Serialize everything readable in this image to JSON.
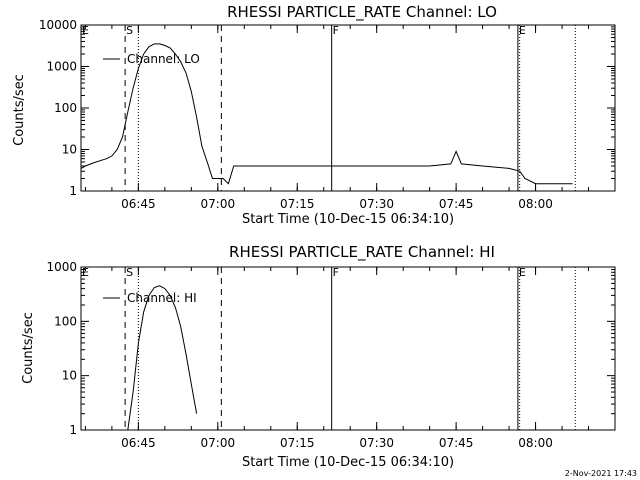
{
  "chart_data": [
    {
      "type": "line",
      "title": "RHESSI PARTICLE_RATE Channel: LO",
      "xlabel": "Start Time (10-Dec-15 06:34:10)",
      "ylabel": "Counts/sec",
      "yscale": "log",
      "ylim": [
        1,
        10000
      ],
      "xlim": [
        "06:34:10",
        "08:15:00"
      ],
      "x_ticks": [
        "06:45",
        "07:00",
        "07:15",
        "07:30",
        "07:45",
        "08:00"
      ],
      "y_ticks": [
        "1",
        "10",
        "100",
        "1000",
        "10000"
      ],
      "legend": {
        "placement": "top-left",
        "entries": [
          "Channel: LO"
        ]
      },
      "markers": [
        {
          "label": "E",
          "time": "06:34:10",
          "style": "solid"
        },
        {
          "label": "S",
          "time": "06:42:30",
          "style": "dashed"
        },
        {
          "label": "",
          "time": "06:45:00",
          "style": "dotted"
        },
        {
          "label": "",
          "time": "07:00:40",
          "style": "dashed"
        },
        {
          "label": "F",
          "time": "07:21:30",
          "style": "solid"
        },
        {
          "label": "E",
          "time": "07:56:40",
          "style": "solid"
        },
        {
          "label": "",
          "time": "07:57:00",
          "style": "dotted"
        },
        {
          "label": "",
          "time": "08:07:30",
          "style": "dotted"
        }
      ],
      "series": [
        {
          "name": "Channel: LO",
          "x": [
            "06:34:10",
            "06:35:00",
            "06:36:00",
            "06:37:00",
            "06:38:00",
            "06:39:00",
            "06:40:00",
            "06:41:00",
            "06:42:00",
            "06:43:00",
            "06:44:00",
            "06:45:00",
            "06:46:00",
            "06:47:00",
            "06:48:00",
            "06:49:00",
            "06:50:00",
            "06:51:00",
            "06:52:00",
            "06:53:00",
            "06:54:00",
            "06:55:00",
            "06:56:00",
            "06:57:00",
            "06:58:00",
            "06:59:00",
            "07:00:00",
            "07:01:00",
            "07:02:00",
            "07:03:00",
            "07:05:00",
            "07:10:00",
            "07:15:00",
            "07:20:00",
            "07:25:00",
            "07:30:00",
            "07:35:00",
            "07:40:00",
            "07:44:00",
            "07:45:00",
            "07:46:00",
            "07:50:00",
            "07:55:00",
            "07:57:00",
            "07:58:00",
            "08:00:00",
            "08:02:00",
            "08:04:00",
            "08:06:00",
            "08:07:00"
          ],
          "y": [
            3.5,
            4,
            4.5,
            5,
            5.5,
            6,
            7,
            10,
            20,
            80,
            300,
            900,
            2000,
            3000,
            3500,
            3500,
            3200,
            2800,
            2000,
            1300,
            700,
            250,
            60,
            12,
            5,
            2,
            2,
            2,
            1.5,
            4,
            4,
            4,
            4,
            4,
            4,
            4,
            4,
            4,
            4.5,
            9,
            4.5,
            4,
            3.5,
            3,
            2,
            1.5,
            1.5,
            1.5,
            1.5,
            1.5
          ]
        }
      ]
    },
    {
      "type": "line",
      "title": "RHESSI PARTICLE_RATE Channel: HI",
      "xlabel": "Start Time (10-Dec-15 06:34:10)",
      "ylabel": "Counts/sec",
      "yscale": "log",
      "ylim": [
        1,
        1000
      ],
      "xlim": [
        "06:34:10",
        "08:15:00"
      ],
      "x_ticks": [
        "06:45",
        "07:00",
        "07:15",
        "07:30",
        "07:45",
        "08:00"
      ],
      "y_ticks": [
        "1",
        "10",
        "100",
        "1000"
      ],
      "legend": {
        "placement": "top-left",
        "entries": [
          "Channel: HI"
        ]
      },
      "markers": [
        {
          "label": "E",
          "time": "06:34:10",
          "style": "solid"
        },
        {
          "label": "S",
          "time": "06:42:30",
          "style": "dashed"
        },
        {
          "label": "",
          "time": "06:45:00",
          "style": "dotted"
        },
        {
          "label": "",
          "time": "07:00:40",
          "style": "dashed"
        },
        {
          "label": "F",
          "time": "07:21:30",
          "style": "solid"
        },
        {
          "label": "E",
          "time": "07:56:40",
          "style": "solid"
        },
        {
          "label": "",
          "time": "07:57:00",
          "style": "dotted"
        },
        {
          "label": "",
          "time": "08:07:30",
          "style": "dotted"
        }
      ],
      "series": [
        {
          "name": "Channel: HI",
          "x": [
            "06:43:00",
            "06:44:00",
            "06:45:00",
            "06:46:00",
            "06:47:00",
            "06:48:00",
            "06:49:00",
            "06:50:00",
            "06:51:00",
            "06:52:00",
            "06:53:00",
            "06:54:00",
            "06:55:00",
            "06:56:00"
          ],
          "y": [
            1,
            5,
            40,
            150,
            300,
            420,
            450,
            400,
            300,
            180,
            80,
            25,
            7,
            2
          ]
        }
      ]
    }
  ],
  "footer": {
    "timestamp": "2-Nov-2021 17:43"
  }
}
